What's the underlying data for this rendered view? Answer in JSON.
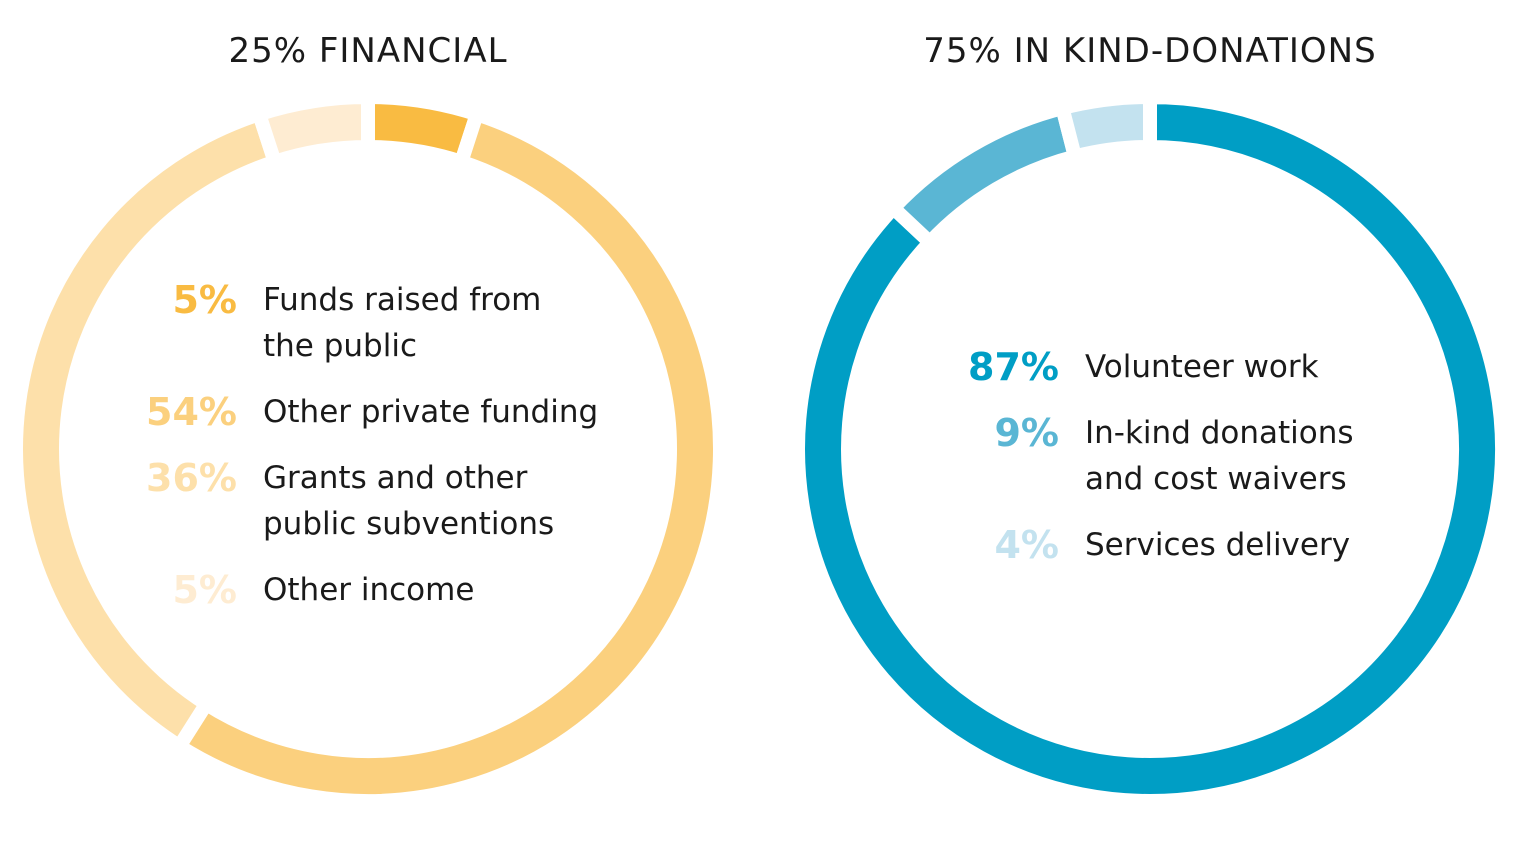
{
  "chart_data": [
    {
      "type": "donut",
      "title": "25% FINANCIAL",
      "categories": [
        "Funds raised from\nthe public",
        "Other private funding",
        "Grants and other\npublic subventions",
        "Other income"
      ],
      "values": [
        5,
        54,
        36,
        5
      ],
      "value_labels": [
        "5%",
        "54%",
        "36%",
        "5%"
      ],
      "colors": [
        "#f9bb42",
        "#fbd07e",
        "#fde0aa",
        "#feecd2"
      ]
    },
    {
      "type": "donut",
      "title": "75% IN KIND-DONATIONS",
      "categories": [
        "Volunteer work",
        "In-kind donations\nand cost waivers",
        "Services delivery"
      ],
      "values": [
        87,
        9,
        4
      ],
      "value_labels": [
        "87%",
        "9%",
        "4%"
      ],
      "colors": [
        "#009ec5",
        "#5ab6d4",
        "#c3e2ef"
      ]
    }
  ]
}
